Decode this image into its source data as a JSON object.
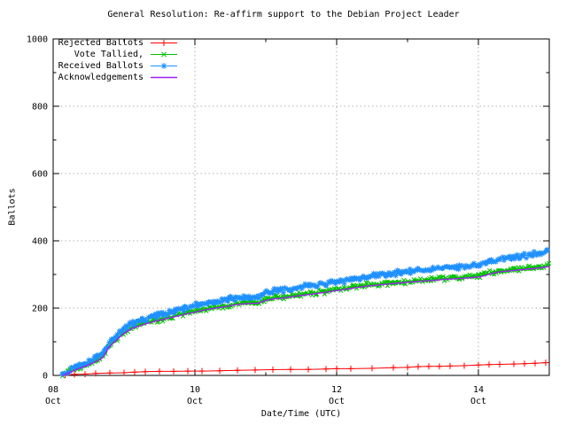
{
  "page": {
    "background": "#ffffff"
  },
  "chart_data": {
    "type": "line",
    "title": "General Resolution: Re-affirm support to the Debian Project Leader",
    "xlabel": "Date/Time (UTC)",
    "ylabel": "Ballots",
    "x_axis": {
      "unit": "day of October (UTC)",
      "range_days": [
        8,
        15
      ],
      "major_ticks": [
        {
          "day": 8,
          "line1": "08",
          "line2": "Oct"
        },
        {
          "day": 10,
          "line1": "10",
          "line2": "Oct"
        },
        {
          "day": 12,
          "line1": "12",
          "line2": "Oct"
        },
        {
          "day": 14,
          "line1": "14",
          "line2": "Oct"
        }
      ],
      "minor_tick_days": [
        9,
        11,
        13,
        15
      ]
    },
    "y_axis": {
      "range": [
        0,
        1000
      ],
      "major_ticks": [
        {
          "value": 0,
          "label": "0"
        },
        {
          "value": 200,
          "label": "200"
        },
        {
          "value": 400,
          "label": "400"
        },
        {
          "value": 600,
          "label": "600"
        },
        {
          "value": 800,
          "label": "800"
        },
        {
          "value": 1000,
          "label": "1000"
        }
      ],
      "minor_tick_values": [
        100,
        300,
        500,
        700,
        900
      ]
    },
    "grid": {
      "shown": true,
      "color": "#b0b0b0",
      "style": "dotted"
    },
    "legend_position": "top-left-inside",
    "series": [
      {
        "name": "Rejected Ballots",
        "color": "#ff0000",
        "marker": "plus",
        "style": "linespoints",
        "points": [
          [
            8.17,
            1
          ],
          [
            8.3,
            3
          ],
          [
            8.45,
            4
          ],
          [
            8.6,
            6
          ],
          [
            8.8,
            7
          ],
          [
            9.0,
            8
          ],
          [
            9.15,
            10
          ],
          [
            9.3,
            11
          ],
          [
            9.5,
            12
          ],
          [
            9.7,
            12
          ],
          [
            9.9,
            13
          ],
          [
            10.1,
            13
          ],
          [
            10.35,
            14
          ],
          [
            10.6,
            15
          ],
          [
            10.85,
            16
          ],
          [
            11.1,
            17
          ],
          [
            11.35,
            18
          ],
          [
            11.6,
            18
          ],
          [
            11.85,
            19
          ],
          [
            12.0,
            20
          ],
          [
            12.2,
            20
          ],
          [
            12.5,
            21
          ],
          [
            12.8,
            23
          ],
          [
            13.0,
            24
          ],
          [
            13.15,
            26
          ],
          [
            13.3,
            27
          ],
          [
            13.45,
            27
          ],
          [
            13.6,
            28
          ],
          [
            13.8,
            29
          ],
          [
            14.0,
            31
          ],
          [
            14.15,
            32
          ],
          [
            14.3,
            33
          ],
          [
            14.5,
            34
          ],
          [
            14.65,
            35
          ],
          [
            14.8,
            36
          ],
          [
            14.95,
            38
          ]
        ]
      },
      {
        "name": "Vote Tallied,",
        "color": "#00c000",
        "marker": "cross",
        "style": "dense-scatter-band",
        "points": [
          [
            8.13,
            1
          ],
          [
            8.17,
            5
          ],
          [
            8.2,
            9
          ],
          [
            8.25,
            13
          ],
          [
            8.3,
            18
          ],
          [
            8.38,
            25
          ],
          [
            8.46,
            31
          ],
          [
            8.54,
            38
          ],
          [
            8.6,
            44
          ],
          [
            8.66,
            50
          ],
          [
            8.7,
            56
          ],
          [
            8.74,
            69
          ],
          [
            8.78,
            85
          ],
          [
            8.83,
            96
          ],
          [
            8.88,
            105
          ],
          [
            8.93,
            115
          ],
          [
            9.0,
            128
          ],
          [
            9.06,
            136
          ],
          [
            9.12,
            143
          ],
          [
            9.2,
            149
          ],
          [
            9.3,
            156
          ],
          [
            9.4,
            162
          ],
          [
            9.5,
            167
          ],
          [
            9.62,
            173
          ],
          [
            9.75,
            179
          ],
          [
            9.88,
            186
          ],
          [
            10.0,
            191
          ],
          [
            10.12,
            197
          ],
          [
            10.25,
            202
          ],
          [
            10.38,
            206
          ],
          [
            10.5,
            210
          ],
          [
            10.6,
            214
          ],
          [
            10.7,
            216
          ],
          [
            10.8,
            217
          ],
          [
            10.9,
            218
          ],
          [
            11.0,
            226
          ],
          [
            11.12,
            231
          ],
          [
            11.25,
            233
          ],
          [
            11.4,
            238
          ],
          [
            11.55,
            242
          ],
          [
            11.7,
            246
          ],
          [
            11.85,
            250
          ],
          [
            12.0,
            255
          ],
          [
            12.15,
            260
          ],
          [
            12.3,
            265
          ],
          [
            12.45,
            269
          ],
          [
            12.6,
            272
          ],
          [
            12.75,
            275
          ],
          [
            12.9,
            278
          ],
          [
            13.05,
            281
          ],
          [
            13.2,
            283
          ],
          [
            13.35,
            285
          ],
          [
            13.5,
            288
          ],
          [
            13.65,
            290
          ],
          [
            13.8,
            292
          ],
          [
            13.92,
            294
          ],
          [
            14.02,
            296
          ],
          [
            14.1,
            300
          ],
          [
            14.2,
            307
          ],
          [
            14.3,
            311
          ],
          [
            14.45,
            314
          ],
          [
            14.6,
            317
          ],
          [
            14.75,
            320
          ],
          [
            14.88,
            323
          ],
          [
            15.0,
            327
          ]
        ]
      },
      {
        "name": "Received Ballots",
        "color": "#1e90ff",
        "marker": "asterisk",
        "style": "dense-scatter-band",
        "points": [
          [
            8.13,
            3
          ],
          [
            8.17,
            8
          ],
          [
            8.2,
            13
          ],
          [
            8.25,
            18
          ],
          [
            8.3,
            23
          ],
          [
            8.38,
            30
          ],
          [
            8.46,
            37
          ],
          [
            8.54,
            45
          ],
          [
            8.6,
            51
          ],
          [
            8.66,
            57
          ],
          [
            8.7,
            64
          ],
          [
            8.74,
            78
          ],
          [
            8.78,
            95
          ],
          [
            8.83,
            106
          ],
          [
            8.88,
            115
          ],
          [
            8.93,
            126
          ],
          [
            9.0,
            140
          ],
          [
            9.06,
            148
          ],
          [
            9.12,
            155
          ],
          [
            9.2,
            161
          ],
          [
            9.3,
            168
          ],
          [
            9.4,
            174
          ],
          [
            9.5,
            180
          ],
          [
            9.62,
            186
          ],
          [
            9.75,
            192
          ],
          [
            9.88,
            200
          ],
          [
            10.0,
            207
          ],
          [
            10.12,
            213
          ],
          [
            10.25,
            218
          ],
          [
            10.38,
            222
          ],
          [
            10.5,
            227
          ],
          [
            10.6,
            231
          ],
          [
            10.7,
            233
          ],
          [
            10.8,
            234
          ],
          [
            10.9,
            236
          ],
          [
            11.0,
            244
          ],
          [
            11.12,
            251
          ],
          [
            11.25,
            254
          ],
          [
            11.4,
            259
          ],
          [
            11.55,
            264
          ],
          [
            11.7,
            268
          ],
          [
            11.85,
            272
          ],
          [
            12.0,
            277
          ],
          [
            12.15,
            283
          ],
          [
            12.3,
            289
          ],
          [
            12.45,
            294
          ],
          [
            12.6,
            298
          ],
          [
            12.75,
            302
          ],
          [
            12.9,
            306
          ],
          [
            13.05,
            310
          ],
          [
            13.2,
            313
          ],
          [
            13.35,
            316
          ],
          [
            13.5,
            319
          ],
          [
            13.65,
            321
          ],
          [
            13.8,
            324
          ],
          [
            13.92,
            326
          ],
          [
            14.02,
            329
          ],
          [
            14.1,
            334
          ],
          [
            14.2,
            342
          ],
          [
            14.3,
            347
          ],
          [
            14.45,
            351
          ],
          [
            14.6,
            355
          ],
          [
            14.75,
            359
          ],
          [
            14.88,
            363
          ],
          [
            15.0,
            368
          ]
        ]
      },
      {
        "name": "Acknowledgements",
        "color": "#a020f0",
        "marker": "none",
        "style": "line",
        "points": [
          [
            8.13,
            0
          ],
          [
            8.17,
            2
          ],
          [
            8.2,
            6
          ],
          [
            8.25,
            10
          ],
          [
            8.3,
            15
          ],
          [
            8.38,
            22
          ],
          [
            8.46,
            28
          ],
          [
            8.54,
            35
          ],
          [
            8.6,
            41
          ],
          [
            8.66,
            47
          ],
          [
            8.7,
            53
          ],
          [
            8.74,
            66
          ],
          [
            8.78,
            82
          ],
          [
            8.83,
            93
          ],
          [
            8.88,
            102
          ],
          [
            8.93,
            112
          ],
          [
            9.0,
            125
          ],
          [
            9.06,
            133
          ],
          [
            9.12,
            140
          ],
          [
            9.2,
            146
          ],
          [
            9.3,
            153
          ],
          [
            9.4,
            159
          ],
          [
            9.5,
            164
          ],
          [
            9.62,
            170
          ],
          [
            9.75,
            176
          ],
          [
            9.88,
            183
          ],
          [
            10.0,
            188
          ],
          [
            10.12,
            194
          ],
          [
            10.25,
            199
          ],
          [
            10.38,
            203
          ],
          [
            10.5,
            207
          ],
          [
            10.6,
            211
          ],
          [
            10.7,
            213
          ],
          [
            10.8,
            214
          ],
          [
            10.9,
            215
          ],
          [
            11.0,
            223
          ],
          [
            11.12,
            228
          ],
          [
            11.25,
            230
          ],
          [
            11.4,
            235
          ],
          [
            11.55,
            239
          ],
          [
            11.7,
            243
          ],
          [
            11.85,
            247
          ],
          [
            12.0,
            252
          ],
          [
            12.15,
            257
          ],
          [
            12.3,
            262
          ],
          [
            12.45,
            266
          ],
          [
            12.6,
            269
          ],
          [
            12.75,
            272
          ],
          [
            12.9,
            275
          ],
          [
            13.05,
            278
          ],
          [
            13.2,
            280
          ],
          [
            13.35,
            282
          ],
          [
            13.5,
            285
          ],
          [
            13.65,
            287
          ],
          [
            13.8,
            289
          ],
          [
            13.92,
            291
          ],
          [
            14.02,
            293
          ],
          [
            14.1,
            297
          ],
          [
            14.2,
            304
          ],
          [
            14.3,
            308
          ],
          [
            14.45,
            311
          ],
          [
            14.6,
            314
          ],
          [
            14.75,
            317
          ],
          [
            14.88,
            320
          ],
          [
            15.0,
            324
          ]
        ]
      }
    ]
  }
}
